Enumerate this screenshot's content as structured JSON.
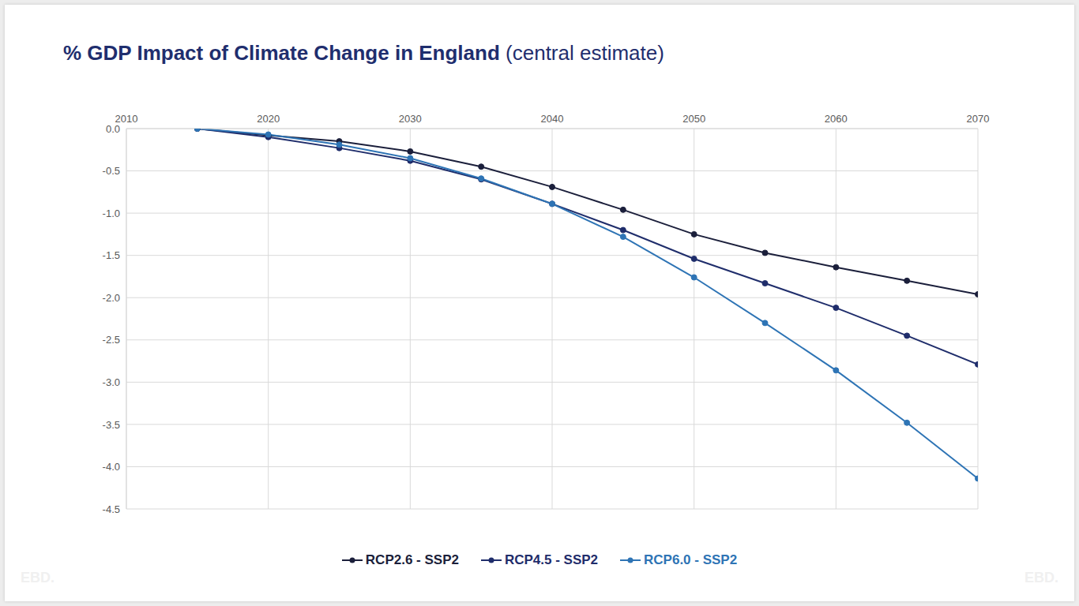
{
  "chart_data": {
    "type": "line",
    "title": "% GDP Impact of Climate Change in England",
    "subtitle": "(central estimate)",
    "watermark": "EBD.",
    "x": [
      2015,
      2020,
      2025,
      2030,
      2035,
      2040,
      2045,
      2050,
      2055,
      2060,
      2065,
      2070
    ],
    "xlim": [
      2010,
      2070
    ],
    "xticks": [
      2010,
      2020,
      2030,
      2040,
      2050,
      2060,
      2070
    ],
    "ylim": [
      -4.5,
      0
    ],
    "yticks": [
      {
        "value": 0,
        "label": "0.0"
      },
      -0.5,
      {
        "value": -1,
        "label": "-1.0"
      },
      -1.5,
      {
        "value": -2,
        "label": "-2.0"
      },
      -2.5,
      {
        "value": -3,
        "label": "-3.0"
      },
      -3.5,
      {
        "value": -4,
        "label": "-4.0"
      },
      -4.5
    ],
    "grid": true,
    "legend": "bottom",
    "series": [
      {
        "name": "RCP2.6 - SSP2",
        "color": "#1b1f3b",
        "marker": "circle",
        "values": [
          0,
          -0.08,
          -0.15,
          -0.27,
          -0.45,
          -0.69,
          -0.96,
          -1.25,
          -1.47,
          -1.64,
          -1.8,
          -1.96
        ]
      },
      {
        "name": "RCP4.5 - SSP2",
        "color": "#1f2d6b",
        "marker": "circle",
        "values": [
          0,
          -0.1,
          -0.23,
          -0.38,
          -0.6,
          -0.89,
          -1.2,
          -1.54,
          -1.83,
          -2.12,
          -2.45,
          -2.79
        ]
      },
      {
        "name": "RCP6.0 - SSP2",
        "color": "#2e74b5",
        "marker": "circle",
        "values": [
          0,
          -0.07,
          -0.19,
          -0.35,
          -0.59,
          -0.89,
          -1.28,
          -1.76,
          -2.3,
          -2.86,
          -3.48,
          -4.14
        ]
      }
    ]
  }
}
